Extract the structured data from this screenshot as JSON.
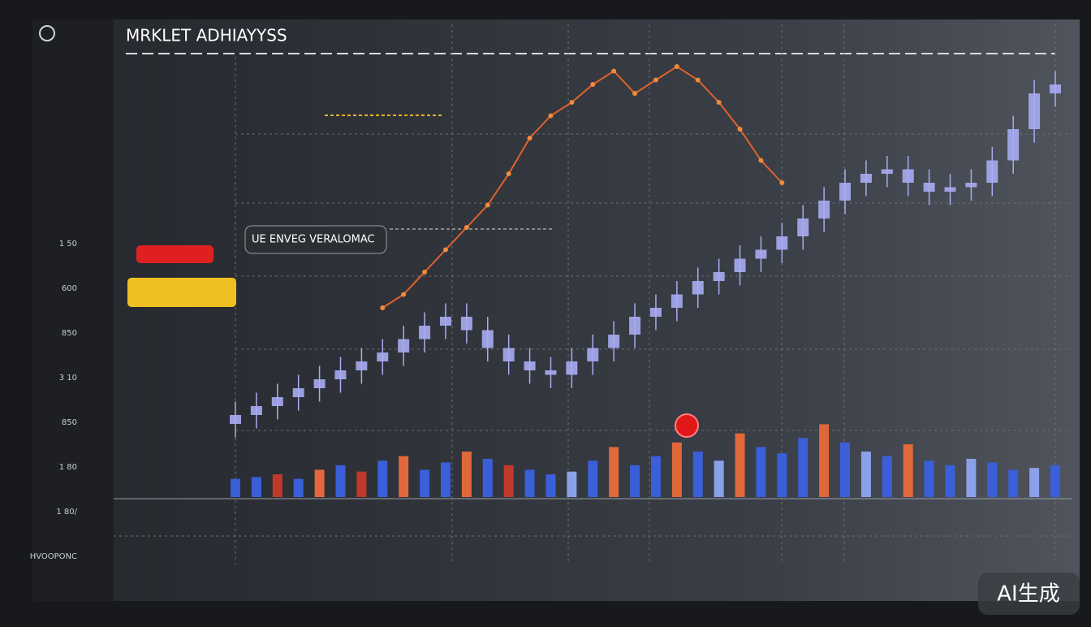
{
  "header": {
    "title": "MRKLET ADHIAYYSS"
  },
  "callout": "UE ENVEG VERALOMAC",
  "watermark": "AI生成",
  "sidebar": {
    "items": [
      "1 50",
      "600",
      "850",
      "3 10",
      "850",
      "1 80",
      "1 80/",
      "HVOOPONC"
    ]
  },
  "chart_data": {
    "type": "candlestick",
    "ylim": [
      0,
      100
    ],
    "color": "#a9acf2",
    "open": [
      16,
      18,
      20,
      22,
      24,
      26,
      28,
      30,
      32,
      35,
      38,
      40,
      37,
      33,
      30,
      28,
      27,
      30,
      33,
      36,
      40,
      42,
      45,
      48,
      50,
      53,
      55,
      58,
      62,
      66,
      70,
      72,
      73,
      70,
      68,
      69,
      70,
      75,
      82,
      90
    ],
    "close": [
      18,
      20,
      22,
      24,
      26,
      28,
      30,
      32,
      35,
      38,
      40,
      37,
      33,
      30,
      28,
      27,
      30,
      33,
      36,
      40,
      42,
      45,
      48,
      50,
      53,
      55,
      58,
      62,
      66,
      70,
      72,
      73,
      70,
      68,
      69,
      70,
      75,
      82,
      90,
      92
    ],
    "high": [
      21,
      23,
      25,
      27,
      29,
      31,
      33,
      35,
      38,
      41,
      43,
      43,
      40,
      36,
      33,
      31,
      33,
      36,
      39,
      43,
      45,
      48,
      51,
      53,
      56,
      58,
      61,
      65,
      69,
      73,
      75,
      76,
      76,
      73,
      72,
      73,
      78,
      85,
      93,
      95
    ],
    "low": [
      13,
      15,
      17,
      19,
      21,
      23,
      25,
      27,
      29,
      32,
      35,
      34,
      30,
      27,
      25,
      24,
      24,
      27,
      30,
      33,
      37,
      39,
      42,
      45,
      47,
      50,
      52,
      55,
      59,
      63,
      67,
      69,
      67,
      65,
      65,
      66,
      67,
      72,
      79,
      87
    ],
    "trend": {
      "color": "#e0622e",
      "values": [
        null,
        null,
        null,
        null,
        null,
        null,
        null,
        42,
        45,
        50,
        55,
        60,
        65,
        72,
        80,
        85,
        88,
        92,
        95,
        90,
        93,
        96,
        93,
        88,
        82,
        75,
        70,
        null,
        null,
        null,
        null,
        null,
        null,
        null,
        null,
        null,
        null,
        null,
        null,
        null
      ]
    },
    "volume": [
      20,
      22,
      25,
      20,
      30,
      35,
      28,
      40,
      45,
      30,
      38,
      50,
      42,
      35,
      30,
      25,
      28,
      40,
      55,
      35,
      45,
      60,
      50,
      40,
      70,
      55,
      48,
      65,
      80,
      60,
      50,
      45,
      58,
      40,
      35,
      42,
      38,
      30,
      32,
      35
    ],
    "volume_ylim": [
      0,
      100
    ],
    "volume_colors": [
      "#3a5fd8",
      "#3a5fd8",
      "#c0392b",
      "#3a5fd8",
      "#e0683a",
      "#3a5fd8",
      "#c0392b",
      "#3a5fd8",
      "#e0683a",
      "#3a5fd8",
      "#3a5fd8",
      "#e0683a",
      "#3a5fd8",
      "#c0392b",
      "#3a5fd8",
      "#3a5fd8",
      "#8aa0e8",
      "#3a5fd8",
      "#e0683a",
      "#3a5fd8",
      "#3a5fd8",
      "#e0683a",
      "#3a5fd8",
      "#8aa0e8",
      "#e0683a",
      "#3a5fd8",
      "#3a5fd8",
      "#3a5fd8",
      "#e0683a",
      "#3a5fd8",
      "#8aa0e8",
      "#3a5fd8",
      "#e0683a",
      "#3a5fd8",
      "#3a5fd8",
      "#8aa0e8",
      "#3a5fd8",
      "#3a5fd8",
      "#8aa0e8",
      "#3a5fd8"
    ]
  }
}
